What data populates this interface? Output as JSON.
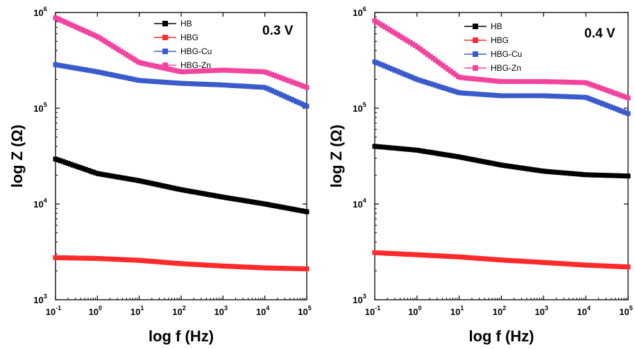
{
  "chart_data": [
    {
      "type": "line",
      "log_x": true,
      "log_y": true,
      "xlabel": "log f (Hz)",
      "ylabel": "log Z (Ω)",
      "annotation": "0.3 V",
      "xlim": [
        0.1,
        100000
      ],
      "ylim": [
        1000,
        1000000
      ],
      "x_ticks": [
        {
          "base": "10",
          "exp": "-1",
          "value": 0.1
        },
        {
          "base": "10",
          "exp": "0",
          "value": 1
        },
        {
          "base": "10",
          "exp": "1",
          "value": 10
        },
        {
          "base": "10",
          "exp": "2",
          "value": 100
        },
        {
          "base": "10",
          "exp": "3",
          "value": 1000
        },
        {
          "base": "10",
          "exp": "4",
          "value": 10000
        },
        {
          "base": "10",
          "exp": "5",
          "value": 100000
        }
      ],
      "y_ticks": [
        {
          "base": "10",
          "exp": "3",
          "value": 1000
        },
        {
          "base": "10",
          "exp": "4",
          "value": 10000
        },
        {
          "base": "10",
          "exp": "5",
          "value": 100000
        },
        {
          "base": "10",
          "exp": "6",
          "value": 1000000
        }
      ],
      "legend_position": "top-center",
      "series": [
        {
          "name": "HB",
          "color": "#000000",
          "x": [
            0.1,
            1,
            10,
            100,
            1000,
            10000,
            100000
          ],
          "y": [
            29500,
            20800,
            17500,
            14100,
            11800,
            10000,
            8300
          ]
        },
        {
          "name": "HBG",
          "color": "#ff2a2a",
          "x": [
            0.1,
            1,
            10,
            100,
            1000,
            10000,
            100000
          ],
          "y": [
            2750,
            2700,
            2580,
            2380,
            2250,
            2150,
            2100
          ]
        },
        {
          "name": "HBG-Cu",
          "color": "#3a5bcc",
          "x": [
            0.1,
            1,
            10,
            100,
            1000,
            10000,
            100000
          ],
          "y": [
            285000,
            240000,
            195000,
            182000,
            175000,
            165000,
            105000
          ]
        },
        {
          "name": "HBG-Zn",
          "color": "#f2449e",
          "x": [
            0.1,
            1,
            10,
            100,
            1000,
            10000,
            100000
          ],
          "y": [
            880000,
            560000,
            300000,
            240000,
            250000,
            240000,
            165000
          ]
        }
      ]
    },
    {
      "type": "line",
      "log_x": true,
      "log_y": true,
      "xlabel": "log f (Hz)",
      "ylabel": "log Z (Ω)",
      "annotation": "0.4 V",
      "xlim": [
        0.1,
        100000
      ],
      "ylim": [
        1000,
        1000000
      ],
      "x_ticks": [
        {
          "base": "10",
          "exp": "-1",
          "value": 0.1
        },
        {
          "base": "10",
          "exp": "0",
          "value": 1
        },
        {
          "base": "10",
          "exp": "1",
          "value": 10
        },
        {
          "base": "10",
          "exp": "2",
          "value": 100
        },
        {
          "base": "10",
          "exp": "3",
          "value": 1000
        },
        {
          "base": "10",
          "exp": "4",
          "value": 10000
        },
        {
          "base": "10",
          "exp": "5",
          "value": 100000
        }
      ],
      "y_ticks": [
        {
          "base": "10",
          "exp": "3",
          "value": 1000
        },
        {
          "base": "10",
          "exp": "4",
          "value": 10000
        },
        {
          "base": "10",
          "exp": "5",
          "value": 100000
        },
        {
          "base": "10",
          "exp": "6",
          "value": 1000000
        }
      ],
      "legend_position": "top-center",
      "series": [
        {
          "name": "HB",
          "color": "#000000",
          "x": [
            0.1,
            1,
            10,
            100,
            1000,
            10000,
            100000
          ],
          "y": [
            40000,
            36500,
            31000,
            25500,
            22000,
            20200,
            19600
          ]
        },
        {
          "name": "HBG",
          "color": "#ff2a2a",
          "x": [
            0.1,
            1,
            10,
            100,
            1000,
            10000,
            100000
          ],
          "y": [
            3100,
            2950,
            2800,
            2600,
            2450,
            2300,
            2200
          ]
        },
        {
          "name": "HBG-Cu",
          "color": "#3a5bcc",
          "x": [
            0.1,
            1,
            10,
            100,
            1000,
            10000,
            100000
          ],
          "y": [
            305000,
            200000,
            145000,
            135000,
            135000,
            130000,
            88000
          ]
        },
        {
          "name": "HBG-Zn",
          "color": "#f2449e",
          "x": [
            0.1,
            1,
            10,
            100,
            1000,
            10000,
            100000
          ],
          "y": [
            820000,
            440000,
            210000,
            190000,
            190000,
            185000,
            128000
          ]
        }
      ]
    }
  ]
}
